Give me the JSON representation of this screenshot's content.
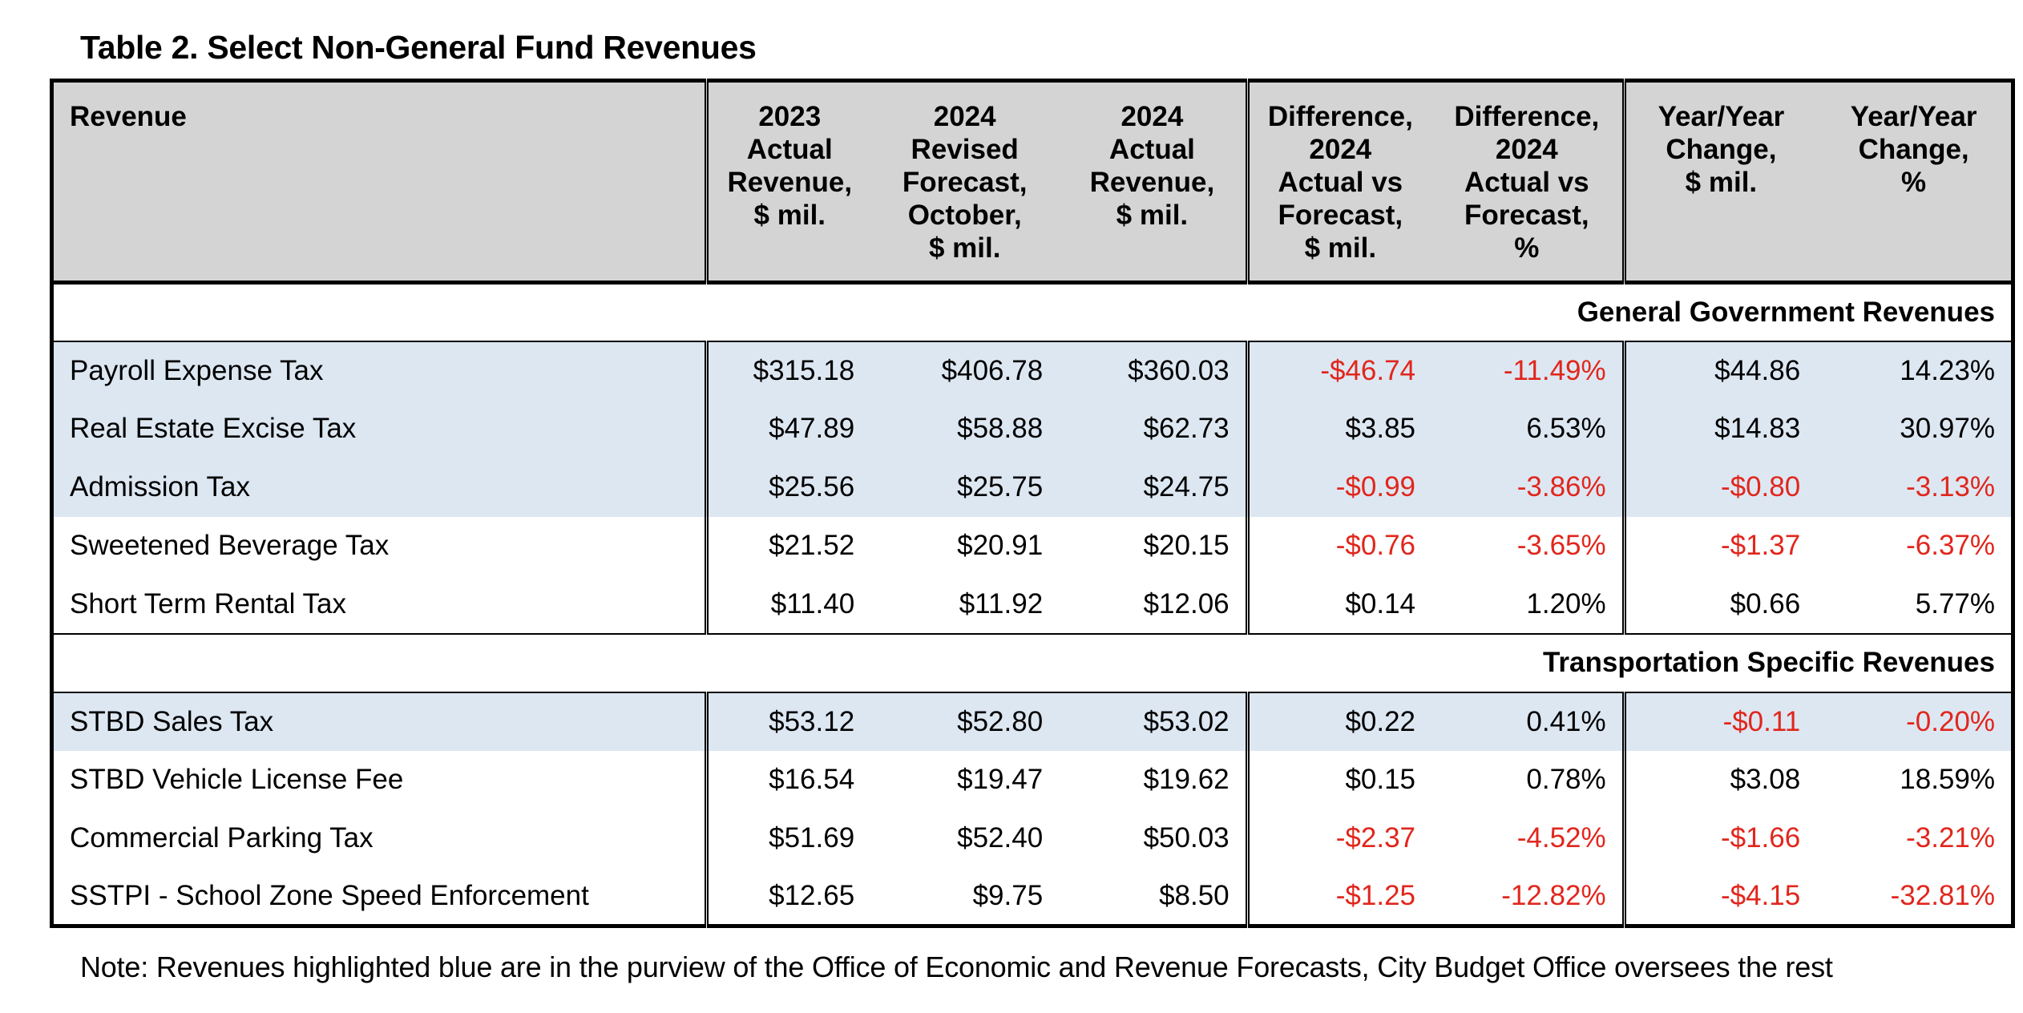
{
  "caption": "Table 2. Select Non-General Fund Revenues",
  "headers": [
    "Revenue",
    "2023 Actual Revenue, $ mil.",
    "2024 Revised Forecast, October, $ mil.",
    "2024 Actual Revenue, $ mil.",
    "Difference, 2024 Actual vs Forecast, $ mil.",
    "Difference, 2024 Actual vs Forecast, %",
    "Year/Year Change, $ mil.",
    "Year/Year Change, %"
  ],
  "header_lines": [
    [
      "Revenue"
    ],
    [
      "2023",
      "Actual",
      "Revenue,",
      "$ mil."
    ],
    [
      "2024",
      "Revised",
      "Forecast,",
      "October,",
      "$ mil."
    ],
    [
      "2024",
      "Actual",
      "Revenue,",
      "$ mil."
    ],
    [
      "Difference,",
      "2024",
      "Actual vs",
      "Forecast,",
      "$ mil."
    ],
    [
      "Difference,",
      "2024",
      "Actual vs",
      "Forecast,",
      "%"
    ],
    [
      "Year/Year",
      "Change,",
      "$ mil."
    ],
    [
      "Year/Year",
      "Change,",
      "%"
    ]
  ],
  "sections": [
    {
      "title": "General Government Revenues",
      "rows": [
        {
          "name": "Payroll Expense Tax",
          "highlight": "blue",
          "values": [
            "$315.18",
            "$406.78",
            "$360.03",
            "-$46.74",
            "-11.49%",
            "$44.86",
            "14.23%"
          ]
        },
        {
          "name": "Real Estate Excise Tax",
          "highlight": "blue",
          "values": [
            "$47.89",
            "$58.88",
            "$62.73",
            "$3.85",
            "6.53%",
            "$14.83",
            "30.97%"
          ]
        },
        {
          "name": "Admission Tax",
          "highlight": "blue",
          "values": [
            "$25.56",
            "$25.75",
            "$24.75",
            "-$0.99",
            "-3.86%",
            "-$0.80",
            "-3.13%"
          ]
        },
        {
          "name": "Sweetened Beverage Tax",
          "highlight": "none",
          "values": [
            "$21.52",
            "$20.91",
            "$20.15",
            "-$0.76",
            "-3.65%",
            "-$1.37",
            "-6.37%"
          ]
        },
        {
          "name": "Short Term Rental Tax",
          "highlight": "none",
          "values": [
            "$11.40",
            "$11.92",
            "$12.06",
            "$0.14",
            "1.20%",
            "$0.66",
            "5.77%"
          ]
        }
      ]
    },
    {
      "title": "Transportation Specific Revenues",
      "rows": [
        {
          "name": "STBD Sales Tax",
          "highlight": "blue",
          "values": [
            "$53.12",
            "$52.80",
            "$53.02",
            "$0.22",
            "0.41%",
            "-$0.11",
            "-0.20%"
          ]
        },
        {
          "name": "STBD Vehicle License Fee",
          "highlight": "none",
          "values": [
            "$16.54",
            "$19.47",
            "$19.62",
            "$0.15",
            "0.78%",
            "$3.08",
            "18.59%"
          ]
        },
        {
          "name": "Commercial Parking Tax",
          "highlight": "none",
          "values": [
            "$51.69",
            "$52.40",
            "$50.03",
            "-$2.37",
            "-4.52%",
            "-$1.66",
            "-3.21%"
          ]
        },
        {
          "name": "SSTPI - School Zone Speed Enforcement",
          "highlight": "none",
          "values": [
            "$12.65",
            "$9.75",
            "$8.50",
            "-$1.25",
            "-12.82%",
            "-$4.15",
            "-32.81%"
          ]
        }
      ]
    }
  ],
  "note": "Note: Revenues highlighted blue are in the purview of the Office of Economic and Revenue Forecasts, City Budget Office oversees the rest",
  "colors": {
    "header_bg": "#d4d4d4",
    "highlight_blue": "#dde7f2",
    "negative_red": "#e1261c",
    "border": "#000000"
  }
}
